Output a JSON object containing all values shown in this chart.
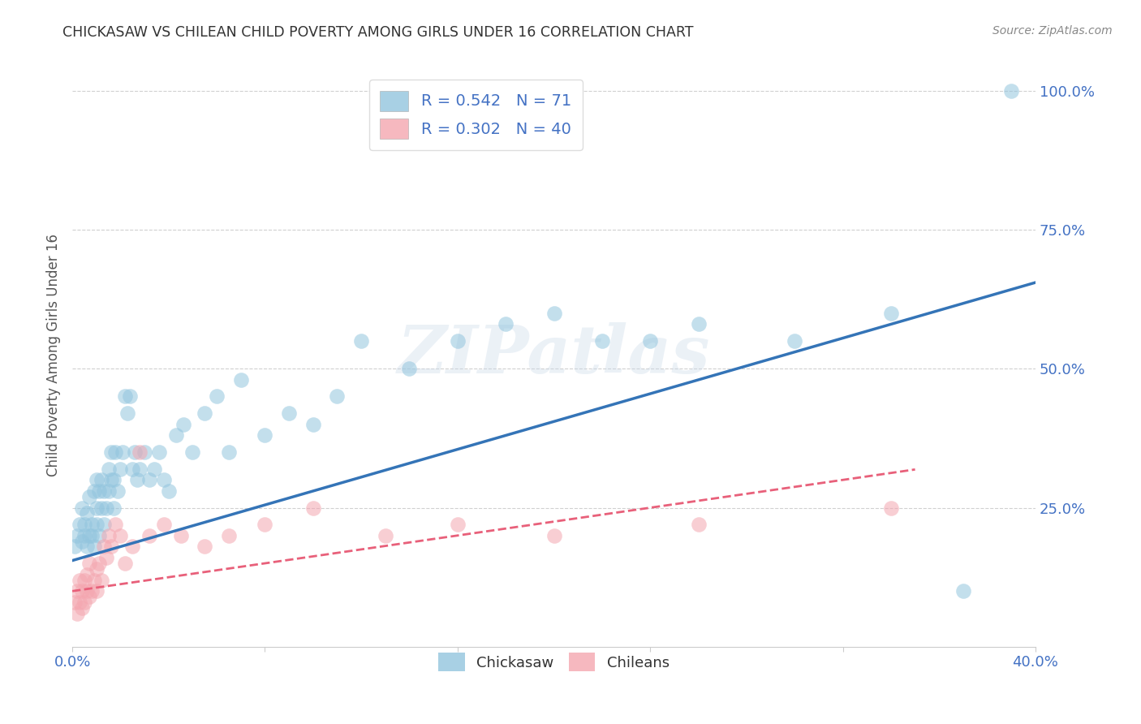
{
  "title": "CHICKASAW VS CHILEAN CHILD POVERTY AMONG GIRLS UNDER 16 CORRELATION CHART",
  "source": "Source: ZipAtlas.com",
  "ylabel": "Child Poverty Among Girls Under 16",
  "xlim": [
    0.0,
    0.4
  ],
  "ylim": [
    0.0,
    1.05
  ],
  "chickasaw_color": "#92c5de",
  "chilean_color": "#f4a6b0",
  "chickasaw_line_color": "#3474b7",
  "chilean_line_color": "#e8607a",
  "R_chickasaw": 0.542,
  "N_chickasaw": 71,
  "R_chilean": 0.302,
  "N_chilean": 40,
  "watermark_text": "ZIPatlas",
  "background_color": "#ffffff",
  "grid_color": "#d0d0d0",
  "title_color": "#333333",
  "source_color": "#888888",
  "tick_color": "#4472c4",
  "legend_text_color": "#4472c4",
  "chickasaw_x": [
    0.001,
    0.002,
    0.003,
    0.004,
    0.004,
    0.005,
    0.005,
    0.006,
    0.006,
    0.007,
    0.007,
    0.008,
    0.008,
    0.009,
    0.009,
    0.01,
    0.01,
    0.01,
    0.011,
    0.011,
    0.012,
    0.012,
    0.013,
    0.013,
    0.014,
    0.015,
    0.015,
    0.016,
    0.016,
    0.017,
    0.017,
    0.018,
    0.019,
    0.02,
    0.021,
    0.022,
    0.023,
    0.024,
    0.025,
    0.026,
    0.027,
    0.028,
    0.03,
    0.032,
    0.034,
    0.036,
    0.038,
    0.04,
    0.043,
    0.046,
    0.05,
    0.055,
    0.06,
    0.065,
    0.07,
    0.08,
    0.09,
    0.1,
    0.11,
    0.12,
    0.14,
    0.16,
    0.18,
    0.2,
    0.22,
    0.24,
    0.26,
    0.3,
    0.34,
    0.37,
    0.39
  ],
  "chickasaw_y": [
    0.18,
    0.2,
    0.22,
    0.19,
    0.25,
    0.2,
    0.22,
    0.18,
    0.24,
    0.2,
    0.27,
    0.22,
    0.2,
    0.28,
    0.18,
    0.25,
    0.22,
    0.3,
    0.2,
    0.28,
    0.3,
    0.25,
    0.28,
    0.22,
    0.25,
    0.32,
    0.28,
    0.3,
    0.35,
    0.25,
    0.3,
    0.35,
    0.28,
    0.32,
    0.35,
    0.45,
    0.42,
    0.45,
    0.32,
    0.35,
    0.3,
    0.32,
    0.35,
    0.3,
    0.32,
    0.35,
    0.3,
    0.28,
    0.38,
    0.4,
    0.35,
    0.42,
    0.45,
    0.35,
    0.48,
    0.38,
    0.42,
    0.4,
    0.45,
    0.55,
    0.5,
    0.55,
    0.58,
    0.6,
    0.55,
    0.55,
    0.58,
    0.55,
    0.6,
    0.1,
    1.0
  ],
  "chilean_x": [
    0.001,
    0.002,
    0.002,
    0.003,
    0.003,
    0.004,
    0.004,
    0.005,
    0.005,
    0.006,
    0.006,
    0.007,
    0.007,
    0.008,
    0.009,
    0.01,
    0.01,
    0.011,
    0.012,
    0.013,
    0.014,
    0.015,
    0.016,
    0.018,
    0.02,
    0.022,
    0.025,
    0.028,
    0.032,
    0.038,
    0.045,
    0.055,
    0.065,
    0.08,
    0.1,
    0.13,
    0.16,
    0.2,
    0.26,
    0.34
  ],
  "chilean_y": [
    0.08,
    0.1,
    0.06,
    0.08,
    0.12,
    0.1,
    0.07,
    0.12,
    0.08,
    0.1,
    0.13,
    0.09,
    0.15,
    0.1,
    0.12,
    0.14,
    0.1,
    0.15,
    0.12,
    0.18,
    0.16,
    0.2,
    0.18,
    0.22,
    0.2,
    0.15,
    0.18,
    0.35,
    0.2,
    0.22,
    0.2,
    0.18,
    0.2,
    0.22,
    0.25,
    0.2,
    0.22,
    0.2,
    0.22,
    0.25
  ],
  "chickasaw_trendline": [
    0.155,
    0.655
  ],
  "chilean_trendline": [
    0.1,
    0.35
  ]
}
